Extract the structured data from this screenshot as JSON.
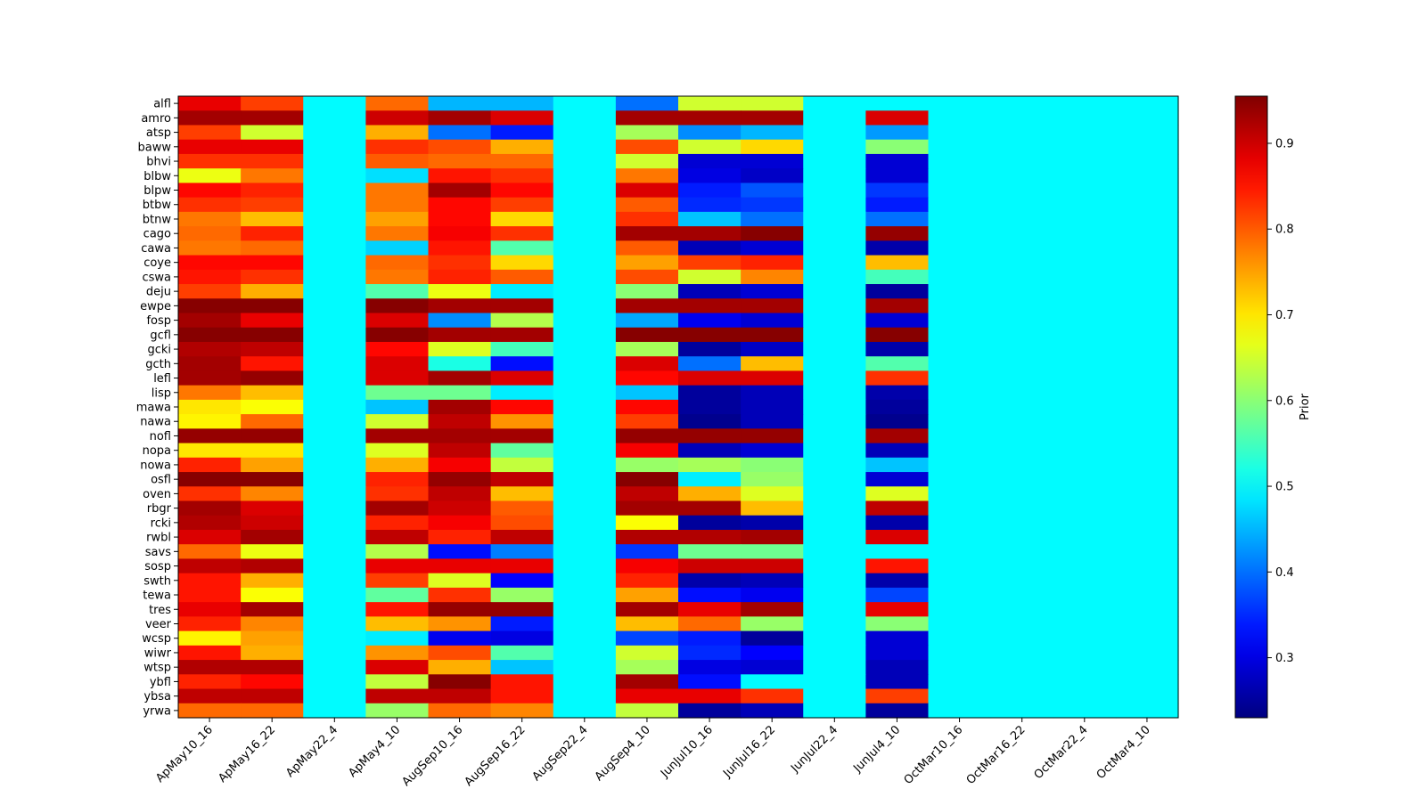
{
  "chart_data": {
    "type": "heatmap",
    "title": "",
    "xlabel": "",
    "ylabel": "",
    "x_categories": [
      "ApMay10_16",
      "ApMay16_22",
      "ApMay22_4",
      "ApMay4_10",
      "AugSep10_16",
      "AugSep16_22",
      "AugSep22_4",
      "AugSep4_10",
      "JunJul10_16",
      "JunJul16_22",
      "JunJul22_4",
      "JunJul4_10",
      "OctMar10_16",
      "OctMar16_22",
      "OctMar22_4",
      "OctMar4_10"
    ],
    "y_categories": [
      "alfl",
      "amro",
      "atsp",
      "baww",
      "bhvi",
      "blbw",
      "blpw",
      "btbw",
      "btnw",
      "cago",
      "cawa",
      "coye",
      "cswa",
      "deju",
      "ewpe",
      "fosp",
      "gcfl",
      "gcki",
      "gcth",
      "lefl",
      "lisp",
      "mawa",
      "nawa",
      "nofl",
      "nopa",
      "nowa",
      "osfl",
      "oven",
      "rbgr",
      "rcki",
      "rwbl",
      "savs",
      "sosp",
      "swth",
      "tewa",
      "tres",
      "veer",
      "wcsp",
      "wiwr",
      "wtsp",
      "ybfl",
      "ybsa",
      "yrwa"
    ],
    "values": [
      [
        0.88,
        0.82,
        0.5,
        0.79,
        0.45,
        0.45,
        0.5,
        0.4,
        0.65,
        0.65,
        0.5,
        0.5,
        0.5,
        0.5,
        0.5,
        0.5
      ],
      [
        0.93,
        0.93,
        0.5,
        0.9,
        0.93,
        0.89,
        0.5,
        0.93,
        0.93,
        0.93,
        0.5,
        0.89,
        0.5,
        0.5,
        0.5,
        0.5
      ],
      [
        0.82,
        0.65,
        0.5,
        0.74,
        0.4,
        0.34,
        0.5,
        0.62,
        0.42,
        0.45,
        0.5,
        0.43,
        0.5,
        0.5,
        0.5,
        0.5
      ],
      [
        0.88,
        0.88,
        0.5,
        0.83,
        0.81,
        0.74,
        0.5,
        0.81,
        0.65,
        0.71,
        0.5,
        0.6,
        0.5,
        0.5,
        0.5,
        0.5
      ],
      [
        0.83,
        0.83,
        0.5,
        0.8,
        0.79,
        0.79,
        0.5,
        0.65,
        0.29,
        0.29,
        0.5,
        0.29,
        0.5,
        0.5,
        0.5,
        0.5
      ],
      [
        0.67,
        0.78,
        0.5,
        0.48,
        0.85,
        0.83,
        0.5,
        0.78,
        0.3,
        0.28,
        0.5,
        0.29,
        0.5,
        0.5,
        0.5,
        0.5
      ],
      [
        0.86,
        0.84,
        0.5,
        0.78,
        0.93,
        0.86,
        0.5,
        0.89,
        0.34,
        0.38,
        0.5,
        0.36,
        0.5,
        0.5,
        0.5,
        0.5
      ],
      [
        0.83,
        0.82,
        0.5,
        0.78,
        0.86,
        0.82,
        0.5,
        0.8,
        0.35,
        0.36,
        0.5,
        0.34,
        0.5,
        0.5,
        0.5,
        0.5
      ],
      [
        0.78,
        0.73,
        0.5,
        0.75,
        0.86,
        0.71,
        0.5,
        0.83,
        0.46,
        0.4,
        0.5,
        0.4,
        0.5,
        0.5,
        0.5,
        0.5
      ],
      [
        0.79,
        0.84,
        0.5,
        0.78,
        0.87,
        0.83,
        0.5,
        0.93,
        0.93,
        0.95,
        0.5,
        0.94,
        0.5,
        0.5,
        0.5,
        0.5
      ],
      [
        0.78,
        0.79,
        0.5,
        0.47,
        0.85,
        0.56,
        0.5,
        0.8,
        0.27,
        0.29,
        0.5,
        0.26,
        0.5,
        0.5,
        0.5,
        0.5
      ],
      [
        0.86,
        0.86,
        0.5,
        0.79,
        0.83,
        0.71,
        0.5,
        0.75,
        0.82,
        0.84,
        0.5,
        0.73,
        0.5,
        0.5,
        0.5,
        0.5
      ],
      [
        0.85,
        0.83,
        0.5,
        0.78,
        0.84,
        0.8,
        0.5,
        0.81,
        0.65,
        0.77,
        0.5,
        0.55,
        0.5,
        0.5,
        0.5,
        0.5
      ],
      [
        0.82,
        0.74,
        0.5,
        0.56,
        0.67,
        0.49,
        0.5,
        0.6,
        0.27,
        0.29,
        0.5,
        0.25,
        0.5,
        0.5,
        0.5,
        0.5
      ],
      [
        0.95,
        0.95,
        0.5,
        0.95,
        0.93,
        0.93,
        0.5,
        0.93,
        0.93,
        0.93,
        0.5,
        0.93,
        0.5,
        0.5,
        0.5,
        0.5
      ],
      [
        0.93,
        0.88,
        0.5,
        0.89,
        0.42,
        0.63,
        0.5,
        0.44,
        0.31,
        0.29,
        0.5,
        0.29,
        0.5,
        0.5,
        0.5,
        0.5
      ],
      [
        0.95,
        0.95,
        0.5,
        0.95,
        0.93,
        0.93,
        0.5,
        0.95,
        0.95,
        0.95,
        0.5,
        0.95,
        0.5,
        0.5,
        0.5,
        0.5
      ],
      [
        0.92,
        0.91,
        0.5,
        0.86,
        0.66,
        0.55,
        0.5,
        0.62,
        0.25,
        0.28,
        0.5,
        0.26,
        0.5,
        0.5,
        0.5,
        0.5
      ],
      [
        0.93,
        0.85,
        0.5,
        0.89,
        0.52,
        0.33,
        0.5,
        0.89,
        0.4,
        0.73,
        0.5,
        0.56,
        0.5,
        0.5,
        0.5,
        0.5
      ],
      [
        0.93,
        0.94,
        0.5,
        0.89,
        0.93,
        0.89,
        0.5,
        0.86,
        0.89,
        0.89,
        0.5,
        0.83,
        0.5,
        0.5,
        0.5,
        0.5
      ],
      [
        0.78,
        0.73,
        0.5,
        0.58,
        0.58,
        0.49,
        0.5,
        0.46,
        0.25,
        0.27,
        0.5,
        0.26,
        0.5,
        0.5,
        0.5,
        0.5
      ],
      [
        0.7,
        0.68,
        0.5,
        0.46,
        0.93,
        0.86,
        0.5,
        0.86,
        0.25,
        0.27,
        0.5,
        0.25,
        0.5,
        0.5,
        0.5,
        0.5
      ],
      [
        0.69,
        0.79,
        0.5,
        0.65,
        0.91,
        0.76,
        0.5,
        0.82,
        0.24,
        0.27,
        0.5,
        0.24,
        0.5,
        0.5,
        0.5,
        0.5
      ],
      [
        0.94,
        0.94,
        0.5,
        0.93,
        0.93,
        0.93,
        0.5,
        0.94,
        0.94,
        0.94,
        0.5,
        0.93,
        0.5,
        0.5,
        0.5,
        0.5
      ],
      [
        0.7,
        0.7,
        0.5,
        0.66,
        0.91,
        0.57,
        0.5,
        0.87,
        0.27,
        0.29,
        0.5,
        0.27,
        0.5,
        0.5,
        0.5,
        0.5
      ],
      [
        0.84,
        0.75,
        0.5,
        0.74,
        0.87,
        0.64,
        0.5,
        0.61,
        0.62,
        0.6,
        0.5,
        0.46,
        0.5,
        0.5,
        0.5,
        0.5
      ],
      [
        0.95,
        0.95,
        0.5,
        0.84,
        0.94,
        0.91,
        0.5,
        0.95,
        0.49,
        0.61,
        0.5,
        0.29,
        0.5,
        0.5,
        0.5,
        0.5
      ],
      [
        0.83,
        0.77,
        0.5,
        0.83,
        0.91,
        0.73,
        0.5,
        0.91,
        0.74,
        0.66,
        0.5,
        0.66,
        0.5,
        0.5,
        0.5,
        0.5
      ],
      [
        0.93,
        0.89,
        0.5,
        0.93,
        0.9,
        0.8,
        0.5,
        0.93,
        0.93,
        0.73,
        0.5,
        0.91,
        0.5,
        0.5,
        0.5,
        0.5
      ],
      [
        0.92,
        0.9,
        0.5,
        0.84,
        0.87,
        0.81,
        0.5,
        0.68,
        0.25,
        0.26,
        0.5,
        0.26,
        0.5,
        0.5,
        0.5,
        0.5
      ],
      [
        0.89,
        0.93,
        0.5,
        0.91,
        0.84,
        0.91,
        0.5,
        0.92,
        0.92,
        0.93,
        0.5,
        0.89,
        0.5,
        0.5,
        0.5,
        0.5
      ],
      [
        0.79,
        0.67,
        0.5,
        0.63,
        0.33,
        0.41,
        0.5,
        0.36,
        0.58,
        0.58,
        0.5,
        0.5,
        0.5,
        0.5,
        0.5,
        0.5
      ],
      [
        0.91,
        0.92,
        0.5,
        0.88,
        0.88,
        0.88,
        0.5,
        0.87,
        0.9,
        0.9,
        0.5,
        0.85,
        0.5,
        0.5,
        0.5,
        0.5
      ],
      [
        0.85,
        0.74,
        0.5,
        0.82,
        0.66,
        0.32,
        0.5,
        0.84,
        0.26,
        0.27,
        0.5,
        0.26,
        0.5,
        0.5,
        0.5,
        0.5
      ],
      [
        0.85,
        0.68,
        0.5,
        0.57,
        0.83,
        0.61,
        0.5,
        0.75,
        0.33,
        0.31,
        0.5,
        0.37,
        0.5,
        0.5,
        0.5,
        0.5
      ],
      [
        0.88,
        0.93,
        0.5,
        0.85,
        0.94,
        0.94,
        0.5,
        0.93,
        0.88,
        0.93,
        0.5,
        0.88,
        0.5,
        0.5,
        0.5,
        0.5
      ],
      [
        0.84,
        0.77,
        0.5,
        0.73,
        0.76,
        0.34,
        0.5,
        0.73,
        0.79,
        0.61,
        0.5,
        0.6,
        0.5,
        0.5,
        0.5,
        0.5
      ],
      [
        0.69,
        0.75,
        0.5,
        0.49,
        0.31,
        0.3,
        0.5,
        0.37,
        0.34,
        0.25,
        0.5,
        0.29,
        0.5,
        0.5,
        0.5,
        0.5
      ],
      [
        0.85,
        0.74,
        0.5,
        0.76,
        0.81,
        0.56,
        0.5,
        0.65,
        0.35,
        0.32,
        0.5,
        0.29,
        0.5,
        0.5,
        0.5,
        0.5
      ],
      [
        0.92,
        0.92,
        0.5,
        0.89,
        0.74,
        0.46,
        0.5,
        0.62,
        0.3,
        0.29,
        0.5,
        0.27,
        0.5,
        0.5,
        0.5,
        0.5
      ],
      [
        0.84,
        0.86,
        0.5,
        0.64,
        0.95,
        0.85,
        0.5,
        0.93,
        0.33,
        0.5,
        0.5,
        0.27,
        0.5,
        0.5,
        0.5,
        0.5
      ],
      [
        0.91,
        0.91,
        0.5,
        0.91,
        0.91,
        0.85,
        0.5,
        0.88,
        0.88,
        0.83,
        0.5,
        0.82,
        0.5,
        0.5,
        0.5,
        0.5
      ],
      [
        0.79,
        0.79,
        0.5,
        0.61,
        0.79,
        0.77,
        0.5,
        0.64,
        0.25,
        0.27,
        0.5,
        0.25,
        0.5,
        0.5,
        0.5,
        0.5
      ]
    ],
    "colormap": "jet",
    "vmin": 0.23,
    "vmax": 0.955,
    "colorbar": {
      "label": "Prior",
      "ticks": [
        0.3,
        0.4,
        0.5,
        0.6,
        0.7,
        0.8,
        0.9
      ],
      "tick_labels": [
        "0.3",
        "0.4",
        "0.5",
        "0.6",
        "0.7",
        "0.8",
        "0.9"
      ]
    },
    "grid": false,
    "legend": "none"
  }
}
